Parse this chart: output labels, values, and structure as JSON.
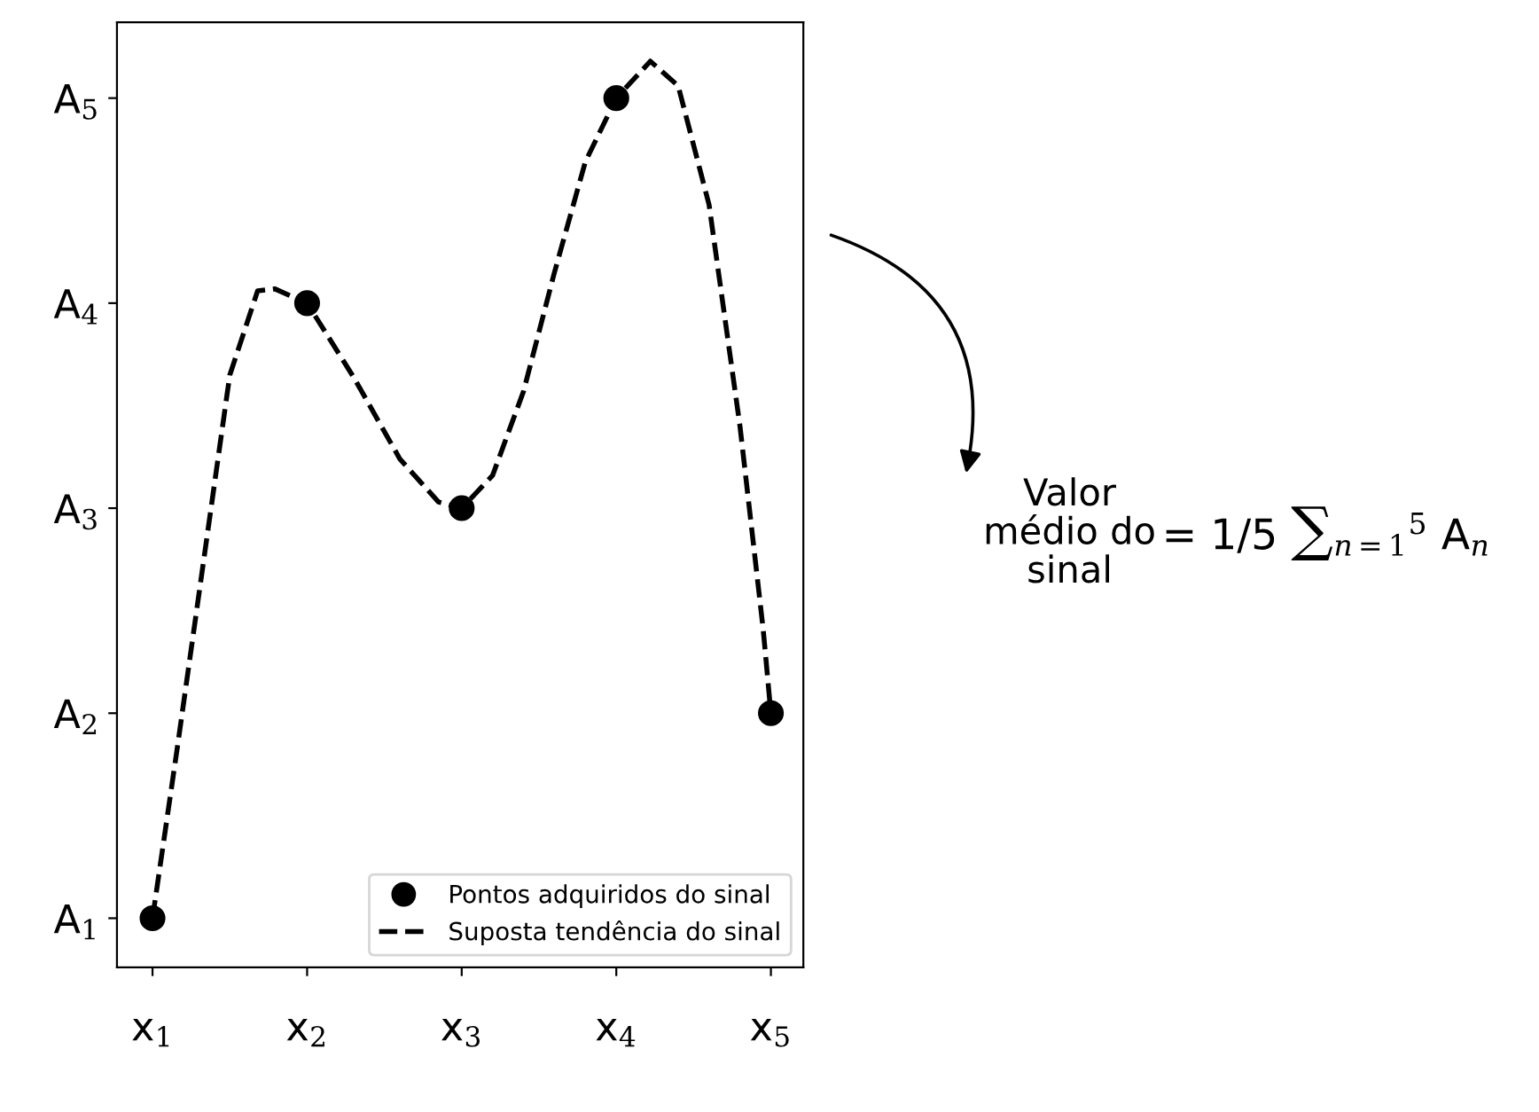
{
  "chart_data": {
    "type": "scatter",
    "x": [
      1,
      2,
      3,
      4,
      5
    ],
    "xlim": [
      0.77,
      5.21
    ],
    "xticks": [
      {
        "value": 1,
        "label": "x$_{1}$"
      },
      {
        "value": 2,
        "label": "x$_{2}$"
      },
      {
        "value": 3,
        "label": "x$_{3}$"
      },
      {
        "value": 4,
        "label": "x$_{4}$"
      },
      {
        "value": 5,
        "label": "x$_{5}$"
      }
    ],
    "ylim": [
      0.76,
      5.37
    ],
    "yticks": [
      {
        "value": 1,
        "label": "A$_{1}$"
      },
      {
        "value": 2,
        "label": "A$_{2}$"
      },
      {
        "value": 3,
        "label": "A$_{3}$"
      },
      {
        "value": 4,
        "label": "A$_{4}$"
      },
      {
        "value": 5,
        "label": "A$_{5}$"
      }
    ],
    "series": [
      {
        "name": "Pontos adquiridos do sinal",
        "color": "#000000",
        "marker": "circle",
        "values": [
          1,
          4,
          3,
          5,
          2
        ]
      },
      {
        "name": "Suposta tendência do sinal",
        "type": "line",
        "color": "#000000",
        "line_style": "dashed",
        "marker": "none",
        "x": [
          1,
          1.16,
          1.33,
          1.5,
          1.68,
          1.79,
          2,
          2.3,
          2.6,
          2.85,
          3,
          3.2,
          3.4,
          3.6,
          3.8,
          4,
          4.22,
          4.4,
          4.6,
          4.8,
          4.95,
          5
        ],
        "values": [
          1,
          1.83,
          2.74,
          3.65,
          4.06,
          4.07,
          4,
          3.64,
          3.24,
          3.03,
          3,
          3.16,
          3.57,
          4.15,
          4.69,
          5,
          5.18,
          5.06,
          4.48,
          3.4,
          2.41,
          2
        ]
      }
    ],
    "legend": "bottom right",
    "grid": false,
    "annotations": [
      "Valor\nmédio do\nsinal",
      "= 1/5 ∑$_{n=1}$$^{5}$ A$_{n}$"
    ]
  }
}
